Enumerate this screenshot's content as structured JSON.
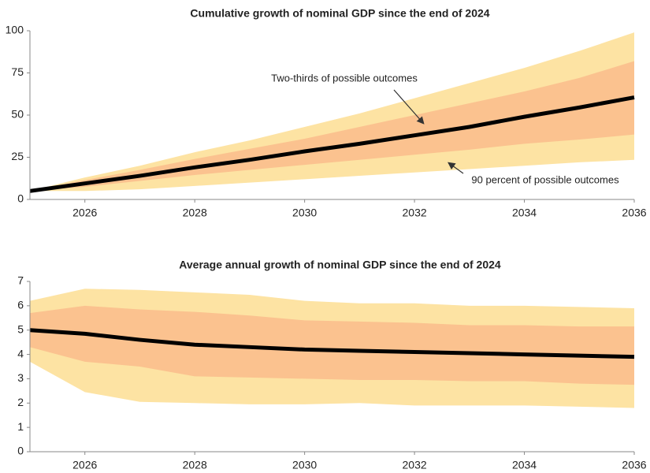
{
  "chart_data": [
    {
      "type": "fan",
      "title": "Cumulative growth of nominal GDP since the end of 2024",
      "x": [
        2025,
        2026,
        2027,
        2028,
        2029,
        2030,
        2031,
        2032,
        2033,
        2034,
        2035,
        2036
      ],
      "xlim": [
        2025,
        2036
      ],
      "xticks": [
        2026,
        2028,
        2030,
        2032,
        2034,
        2036
      ],
      "ylim": [
        0,
        100
      ],
      "yticks": [
        0,
        25,
        50,
        75,
        100
      ],
      "bands": [
        {
          "color": "#fde3a3",
          "upper": [
            5,
            13,
            20,
            28,
            35,
            43,
            51,
            60,
            69,
            78,
            88,
            99
          ],
          "lower": [
            5,
            5,
            6,
            8,
            10,
            12,
            14,
            16,
            18,
            20,
            22,
            23.5
          ]
        },
        {
          "color": "#fbc28f",
          "upper": [
            5,
            11.5,
            17.5,
            24,
            30,
            36,
            43,
            50,
            57,
            64,
            72,
            82
          ],
          "lower": [
            5,
            7.5,
            11,
            14.5,
            17.5,
            20.5,
            23.5,
            26.5,
            29.5,
            33,
            35.5,
            38.5
          ]
        }
      ],
      "series": [
        {
          "color": "#000000",
          "values": [
            5,
            9.5,
            14,
            19,
            23.5,
            28.5,
            33,
            38,
            43,
            49,
            54.5,
            60.5
          ]
        }
      ],
      "annotations": [
        "Two-thirds of possible outcomes",
        "90 percent of possible outcomes"
      ]
    },
    {
      "type": "fan",
      "title": "Average annual growth of nominal GDP since the end of 2024",
      "x": [
        2025,
        2026,
        2027,
        2028,
        2029,
        2030,
        2031,
        2032,
        2033,
        2034,
        2035,
        2036
      ],
      "xlim": [
        2025,
        2036
      ],
      "xticks": [
        2026,
        2028,
        2030,
        2032,
        2034,
        2036
      ],
      "ylim": [
        0,
        7
      ],
      "yticks": [
        0,
        1,
        2,
        3,
        4,
        5,
        6,
        7
      ],
      "bands": [
        {
          "color": "#fde3a3",
          "upper": [
            6.2,
            6.7,
            6.65,
            6.55,
            6.45,
            6.2,
            6.1,
            6.1,
            6.0,
            6.0,
            5.95,
            5.9
          ],
          "lower": [
            3.7,
            2.45,
            2.05,
            2.0,
            1.95,
            1.95,
            2.0,
            1.9,
            1.9,
            1.9,
            1.85,
            1.8
          ]
        },
        {
          "color": "#fbc28f",
          "upper": [
            5.7,
            6.0,
            5.85,
            5.75,
            5.6,
            5.4,
            5.35,
            5.3,
            5.2,
            5.2,
            5.15,
            5.15
          ],
          "lower": [
            4.3,
            3.7,
            3.5,
            3.1,
            3.05,
            3.0,
            2.95,
            2.95,
            2.9,
            2.9,
            2.8,
            2.75
          ]
        }
      ],
      "series": [
        {
          "color": "#000000",
          "values": [
            5.0,
            4.85,
            4.6,
            4.4,
            4.3,
            4.2,
            4.15,
            4.1,
            4.05,
            4.0,
            3.95,
            3.9
          ]
        }
      ]
    }
  ]
}
